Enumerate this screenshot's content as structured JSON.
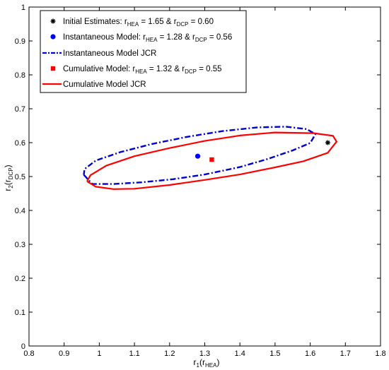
{
  "chart_data": {
    "type": "line",
    "xlabel": {
      "main": "r",
      "sub1": "1",
      "paren_open": "(r",
      "sub2": "HEA",
      "paren_close": ")"
    },
    "ylabel": {
      "main": "r",
      "sub1": "2",
      "paren_open": "(r",
      "sub2": "DCP",
      "paren_close": ")"
    },
    "xlim": [
      0.8,
      1.8
    ],
    "ylim": [
      0,
      1
    ],
    "xticks": [
      "0.8",
      "0.9",
      "1",
      "1.1",
      "1.2",
      "1.3",
      "1.4",
      "1.5",
      "1.6",
      "1.7",
      "1.8"
    ],
    "yticks": [
      "0",
      "0.1",
      "0.2",
      "0.3",
      "0.4",
      "0.5",
      "0.6",
      "0.7",
      "0.8",
      "0.9",
      "1"
    ],
    "grid": false,
    "legend_position": "top-left",
    "points": [
      {
        "id": "initial",
        "x": 1.65,
        "y": 0.6,
        "marker": "asterisk",
        "color": "#000000",
        "label_pre": "Initial Estimates: r",
        "sub1": "HEA",
        "mid": " = 1.65 & r",
        "sub2": "DCP",
        "post": " = 0.60"
      },
      {
        "id": "instantaneous",
        "x": 1.28,
        "y": 0.56,
        "marker": "circle",
        "color": "#0000ff",
        "label_pre": "Instantaneous Model: r",
        "sub1": "HEA",
        "mid": " = 1.28 & r",
        "sub2": "DCP",
        "post": " = 0.56"
      },
      {
        "id": "cumulative",
        "x": 1.32,
        "y": 0.55,
        "marker": "square",
        "color": "#ff0000",
        "label_pre": "Cumulative Model: r",
        "sub1": "HEA",
        "mid": " = 1.32 & r",
        "sub2": "DCP",
        "post": " = 0.55"
      }
    ],
    "regions": [
      {
        "id": "instantaneous-jcr",
        "label": "Instantaneous Model JCR",
        "color": "#0000cc",
        "dash": "dashdot",
        "x": [
          0.956,
          0.98,
          1.04,
          1.12,
          1.21,
          1.3,
          1.4,
          1.48,
          1.55,
          1.6,
          1.615,
          1.59,
          1.53,
          1.45,
          1.35,
          1.25,
          1.15,
          1.06,
          0.99,
          0.958,
          0.956
        ],
        "y": [
          0.505,
          0.478,
          0.478,
          0.483,
          0.492,
          0.506,
          0.528,
          0.552,
          0.577,
          0.599,
          0.625,
          0.64,
          0.647,
          0.645,
          0.634,
          0.617,
          0.596,
          0.572,
          0.547,
          0.522,
          0.505
        ]
      },
      {
        "id": "cumulative-jcr",
        "label": "Cumulative Model JCR",
        "color": "#ff0000",
        "dash": "solid",
        "x": [
          0.965,
          0.99,
          1.04,
          1.1,
          1.2,
          1.3,
          1.4,
          1.5,
          1.58,
          1.65,
          1.675,
          1.665,
          1.61,
          1.5,
          1.4,
          1.3,
          1.2,
          1.1,
          1.02,
          0.975,
          0.965
        ],
        "y": [
          0.486,
          0.47,
          0.463,
          0.464,
          0.475,
          0.49,
          0.506,
          0.527,
          0.545,
          0.57,
          0.603,
          0.62,
          0.628,
          0.63,
          0.621,
          0.605,
          0.584,
          0.56,
          0.532,
          0.504,
          0.486
        ]
      }
    ]
  }
}
